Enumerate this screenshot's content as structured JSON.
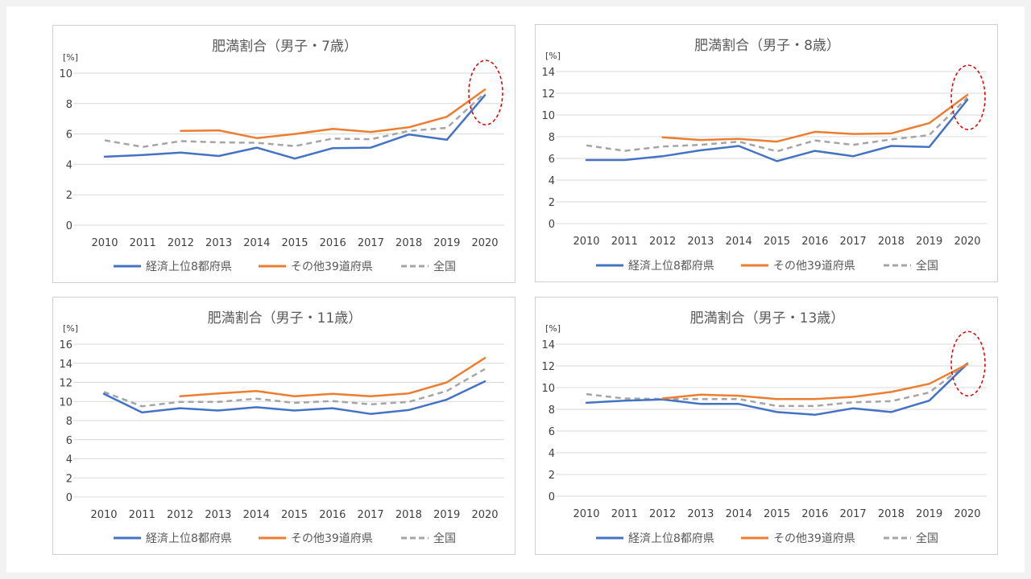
{
  "chart_data": [
    {
      "type": "line",
      "title": "肥満割合（男子・7歳）",
      "yunit": "[%]",
      "x": [
        "2010",
        "2011",
        "2012",
        "2013",
        "2014",
        "2015",
        "2016",
        "2017",
        "2018",
        "2019",
        "2020"
      ],
      "ylim": [
        0,
        10
      ],
      "yticks": [
        0,
        2,
        4,
        6,
        8,
        10
      ],
      "grid": true,
      "legend_position": "bottom",
      "highlight_ellipse_at": "2020",
      "series": [
        {
          "name": "経済上位8都府県",
          "color": "#4472c4",
          "dash": "solid",
          "values": [
            4.5,
            4.62,
            4.78,
            4.55,
            5.1,
            4.38,
            5.07,
            5.1,
            5.97,
            5.62,
            8.55
          ]
        },
        {
          "name": "その他39道府県",
          "color": "#ed7d31",
          "dash": "solid",
          "values": [
            null,
            null,
            6.2,
            6.24,
            5.73,
            6.0,
            6.34,
            6.13,
            6.44,
            7.13,
            8.92
          ]
        },
        {
          "name": "全国",
          "color": "#a5a5a5",
          "dash": "dashed",
          "values": [
            5.58,
            5.15,
            5.53,
            5.45,
            5.42,
            5.2,
            5.7,
            5.65,
            6.2,
            6.4,
            8.7
          ]
        }
      ]
    },
    {
      "type": "line",
      "title": "肥満割合（男子・8歳）",
      "yunit": "[%]",
      "x": [
        "2010",
        "2011",
        "2012",
        "2013",
        "2014",
        "2015",
        "2016",
        "2017",
        "2018",
        "2019",
        "2020"
      ],
      "ylim": [
        0,
        14
      ],
      "yticks": [
        0,
        2,
        4,
        6,
        8,
        10,
        12,
        14
      ],
      "grid": true,
      "legend_position": "bottom",
      "highlight_ellipse_at": "2020",
      "series": [
        {
          "name": "経済上位8都府県",
          "color": "#4472c4",
          "dash": "solid",
          "values": [
            5.85,
            5.85,
            6.2,
            6.75,
            7.15,
            5.75,
            6.7,
            6.2,
            7.15,
            7.05,
            11.4
          ]
        },
        {
          "name": "その他39道府県",
          "color": "#ed7d31",
          "dash": "solid",
          "values": [
            null,
            null,
            7.95,
            7.7,
            7.8,
            7.55,
            8.45,
            8.25,
            8.3,
            9.25,
            11.85
          ]
        },
        {
          "name": "全国",
          "color": "#a5a5a5",
          "dash": "dashed",
          "values": [
            7.2,
            6.7,
            7.1,
            7.25,
            7.55,
            6.65,
            7.65,
            7.25,
            7.75,
            8.15,
            11.6
          ]
        }
      ]
    },
    {
      "type": "line",
      "title": "肥満割合（男子・11歳）",
      "yunit": "[%]",
      "x": [
        "2010",
        "2011",
        "2012",
        "2013",
        "2014",
        "2015",
        "2016",
        "2017",
        "2018",
        "2019",
        "2020"
      ],
      "ylim": [
        0,
        16
      ],
      "yticks": [
        0,
        2,
        4,
        6,
        8,
        10,
        12,
        14,
        16
      ],
      "grid": true,
      "legend_position": "bottom",
      "series": [
        {
          "name": "経済上位8都府県",
          "color": "#4472c4",
          "dash": "solid",
          "values": [
            10.8,
            8.85,
            9.3,
            9.05,
            9.4,
            9.05,
            9.3,
            8.7,
            9.1,
            10.2,
            12.1
          ]
        },
        {
          "name": "その他39道府県",
          "color": "#ed7d31",
          "dash": "solid",
          "values": [
            null,
            null,
            10.55,
            10.85,
            11.1,
            10.55,
            10.8,
            10.55,
            10.85,
            12.0,
            14.55
          ]
        },
        {
          "name": "全国",
          "color": "#a5a5a5",
          "dash": "dashed",
          "values": [
            11.0,
            9.5,
            9.95,
            9.95,
            10.3,
            9.85,
            10.05,
            9.7,
            9.95,
            11.1,
            13.4
          ]
        }
      ]
    },
    {
      "type": "line",
      "title": "肥満割合（男子・13歳）",
      "yunit": "[%]",
      "x": [
        "2010",
        "2011",
        "2012",
        "2013",
        "2014",
        "2015",
        "2016",
        "2017",
        "2018",
        "2019",
        "2020"
      ],
      "ylim": [
        0,
        14
      ],
      "yticks": [
        0,
        2,
        4,
        6,
        8,
        10,
        12,
        14
      ],
      "grid": true,
      "legend_position": "bottom",
      "highlight_ellipse_at": "2020",
      "series": [
        {
          "name": "経済上位8都府県",
          "color": "#4472c4",
          "dash": "solid",
          "values": [
            8.6,
            8.8,
            8.9,
            8.5,
            8.5,
            7.75,
            7.5,
            8.1,
            7.75,
            8.8,
            12.2
          ]
        },
        {
          "name": "その他39道府県",
          "color": "#ed7d31",
          "dash": "solid",
          "values": [
            null,
            null,
            9.0,
            9.35,
            9.25,
            8.95,
            8.95,
            9.15,
            9.6,
            10.35,
            12.15
          ]
        },
        {
          "name": "全国",
          "color": "#a5a5a5",
          "dash": "dashed",
          "values": [
            9.4,
            9.0,
            8.95,
            8.95,
            8.95,
            8.3,
            8.3,
            8.65,
            8.75,
            9.55,
            12.25
          ]
        }
      ]
    }
  ]
}
